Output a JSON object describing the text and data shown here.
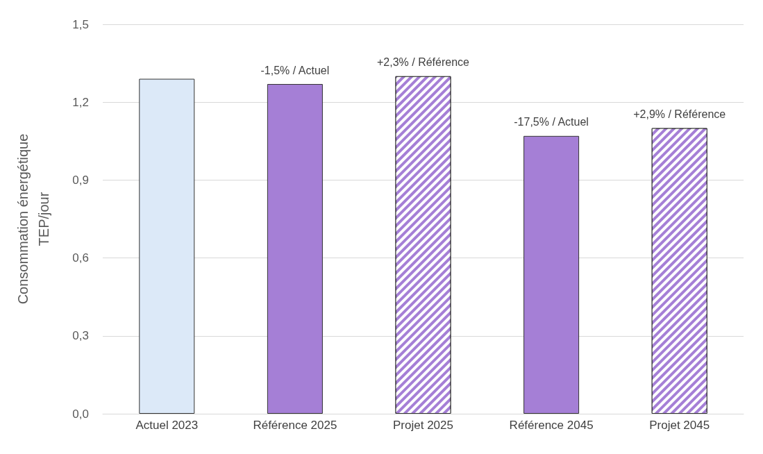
{
  "chart_data": {
    "type": "bar",
    "ylabel": "Consommation énergétique\nTEP/jour",
    "categories": [
      "Actuel 2023",
      "Référence 2025",
      "Projet 2025",
      "Référence 2045",
      "Projet 2045"
    ],
    "series": [
      {
        "color": "#dce9f8",
        "values": [
          1.29,
          null,
          null,
          null,
          null
        ]
      },
      {
        "color": "#a57fd6",
        "values": [
          null,
          1.27,
          null,
          1.07,
          null
        ]
      },
      {
        "color": "#a57fd6",
        "values": [
          null,
          null,
          1.3,
          null,
          1.1
        ]
      }
    ],
    "ylim": [
      0,
      1.5
    ],
    "yticks": [
      {
        "value": 0,
        "label": "0,0"
      },
      {
        "value": 0.3,
        "label": "0,3"
      },
      {
        "value": 0.6,
        "label": "0,6"
      },
      {
        "value": 0.9,
        "label": "0,9"
      },
      {
        "value": 1.2,
        "label": "1,2"
      },
      {
        "value": 1.5,
        "label": "1,5"
      }
    ],
    "grid": "y",
    "annotations": [
      {
        "text": "-1,5% / Actuel",
        "x": "Référence 2025",
        "y": 1.27
      },
      {
        "text": "+2,3% / Référence",
        "x": "Projet 2025",
        "y": 1.3
      },
      {
        "text": "-17,5% / Actuel",
        "x": "Référence 2045",
        "y": 1.07
      },
      {
        "text": "+2,9% / Référence",
        "x": "Projet 2045",
        "y": 1.1
      }
    ]
  }
}
